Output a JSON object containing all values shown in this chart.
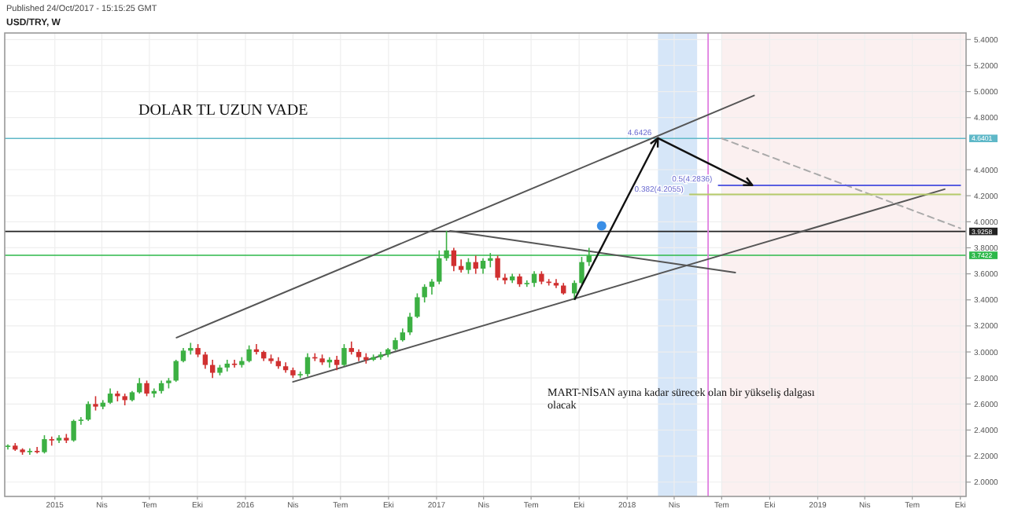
{
  "chart_data": {
    "type": "candlestick",
    "title": "USD/TRY, W",
    "subtitle": "Published 24/Oct/2017 - 15:15:25 GMT",
    "annotations": [
      "DOLAR TL UZUN VADE",
      "MART-NİSAN ayına kadar sürecek olan bir yükseliş dalgası olacak",
      {
        "text": "0.5(4.2836)",
        "x": "2018-06-25",
        "y": 4.2836
      },
      {
        "text": "0.382(4.2055)",
        "x": "2018-05-01",
        "y": 4.2055
      },
      {
        "text": "4.6426",
        "x": "2018-03-01",
        "y": 4.6426
      }
    ],
    "x": [
      "2014-10-03",
      "2014-10-17",
      "2014-10-31",
      "2014-11-14",
      "2014-11-28",
      "2014-12-12",
      "2014-12-26",
      "2015-01-09",
      "2015-01-23",
      "2015-02-06",
      "2015-02-20",
      "2015-03-06",
      "2015-03-20",
      "2015-04-03",
      "2015-04-17",
      "2015-05-01",
      "2015-05-15",
      "2015-05-29",
      "2015-06-12",
      "2015-06-26",
      "2015-07-10",
      "2015-07-24",
      "2015-08-07",
      "2015-08-21",
      "2015-09-04",
      "2015-09-18",
      "2015-10-02",
      "2015-10-16",
      "2015-10-30",
      "2015-11-13",
      "2015-11-27",
      "2015-12-11",
      "2015-12-25",
      "2016-01-08",
      "2016-01-22",
      "2016-02-05",
      "2016-02-19",
      "2016-03-04",
      "2016-03-18",
      "2016-04-01",
      "2016-04-15",
      "2016-04-29",
      "2016-05-13",
      "2016-05-27",
      "2016-06-10",
      "2016-06-24",
      "2016-07-08",
      "2016-07-22",
      "2016-08-05",
      "2016-08-19",
      "2016-09-02",
      "2016-09-16",
      "2016-09-30",
      "2016-10-14",
      "2016-10-28",
      "2016-11-11",
      "2016-11-25",
      "2016-12-09",
      "2016-12-23",
      "2017-01-06",
      "2017-01-20",
      "2017-02-03",
      "2017-02-17",
      "2017-03-03",
      "2017-03-17",
      "2017-03-31",
      "2017-04-14",
      "2017-04-28",
      "2017-05-12",
      "2017-05-26",
      "2017-06-09",
      "2017-06-23",
      "2017-07-07",
      "2017-07-21",
      "2017-08-04",
      "2017-08-18",
      "2017-09-01",
      "2017-09-22",
      "2017-10-06",
      "2017-10-20"
    ],
    "ohlc": [
      [
        2.27,
        2.29,
        2.25,
        2.28
      ],
      [
        2.28,
        2.3,
        2.24,
        2.25
      ],
      [
        2.25,
        2.26,
        2.21,
        2.23
      ],
      [
        2.23,
        2.26,
        2.21,
        2.24
      ],
      [
        2.24,
        2.27,
        2.22,
        2.23
      ],
      [
        2.23,
        2.36,
        2.22,
        2.33
      ],
      [
        2.33,
        2.35,
        2.28,
        2.32
      ],
      [
        2.32,
        2.36,
        2.3,
        2.34
      ],
      [
        2.34,
        2.37,
        2.3,
        2.32
      ],
      [
        2.32,
        2.48,
        2.31,
        2.47
      ],
      [
        2.47,
        2.5,
        2.44,
        2.48
      ],
      [
        2.48,
        2.62,
        2.47,
        2.6
      ],
      [
        2.6,
        2.66,
        2.55,
        2.58
      ],
      [
        2.58,
        2.63,
        2.56,
        2.61
      ],
      [
        2.61,
        2.72,
        2.6,
        2.68
      ],
      [
        2.68,
        2.7,
        2.62,
        2.66
      ],
      [
        2.66,
        2.68,
        2.59,
        2.63
      ],
      [
        2.63,
        2.7,
        2.62,
        2.69
      ],
      [
        2.69,
        2.8,
        2.68,
        2.76
      ],
      [
        2.76,
        2.78,
        2.66,
        2.68
      ],
      [
        2.68,
        2.72,
        2.65,
        2.7
      ],
      [
        2.7,
        2.78,
        2.68,
        2.76
      ],
      [
        2.76,
        2.8,
        2.72,
        2.78
      ],
      [
        2.78,
        2.94,
        2.77,
        2.93
      ],
      [
        2.93,
        3.03,
        2.92,
        3.01
      ],
      [
        3.01,
        3.07,
        2.98,
        3.03
      ],
      [
        3.03,
        3.06,
        2.96,
        2.98
      ],
      [
        2.98,
        3.0,
        2.87,
        2.9
      ],
      [
        2.9,
        2.94,
        2.8,
        2.84
      ],
      [
        2.84,
        2.9,
        2.82,
        2.88
      ],
      [
        2.88,
        2.94,
        2.85,
        2.91
      ],
      [
        2.91,
        2.94,
        2.88,
        2.9
      ],
      [
        2.9,
        2.96,
        2.88,
        2.93
      ],
      [
        2.93,
        3.05,
        2.92,
        3.02
      ],
      [
        3.02,
        3.06,
        2.98,
        3.0
      ],
      [
        3.0,
        3.01,
        2.93,
        2.95
      ],
      [
        2.95,
        2.98,
        2.91,
        2.93
      ],
      [
        2.93,
        2.96,
        2.87,
        2.89
      ],
      [
        2.89,
        2.92,
        2.84,
        2.86
      ],
      [
        2.86,
        2.88,
        2.8,
        2.82
      ],
      [
        2.82,
        2.85,
        2.8,
        2.83
      ],
      [
        2.83,
        2.99,
        2.81,
        2.96
      ],
      [
        2.96,
        2.99,
        2.93,
        2.95
      ],
      [
        2.95,
        2.98,
        2.9,
        2.92
      ],
      [
        2.92,
        2.96,
        2.88,
        2.94
      ],
      [
        2.94,
        2.97,
        2.86,
        2.9
      ],
      [
        2.9,
        3.06,
        2.89,
        3.03
      ],
      [
        3.03,
        3.08,
        2.98,
        3.0
      ],
      [
        3.0,
        3.02,
        2.93,
        2.96
      ],
      [
        2.96,
        2.99,
        2.91,
        2.94
      ],
      [
        2.94,
        2.98,
        2.93,
        2.96
      ],
      [
        2.96,
        3.0,
        2.94,
        2.98
      ],
      [
        2.98,
        3.03,
        2.96,
        3.02
      ],
      [
        3.02,
        3.11,
        3.01,
        3.09
      ],
      [
        3.09,
        3.18,
        3.08,
        3.15
      ],
      [
        3.15,
        3.3,
        3.13,
        3.27
      ],
      [
        3.27,
        3.45,
        3.26,
        3.42
      ],
      [
        3.42,
        3.52,
        3.38,
        3.5
      ],
      [
        3.5,
        3.56,
        3.44,
        3.54
      ],
      [
        3.54,
        3.78,
        3.52,
        3.72
      ],
      [
        3.72,
        3.93,
        3.7,
        3.78
      ],
      [
        3.78,
        3.8,
        3.62,
        3.66
      ],
      [
        3.66,
        3.71,
        3.61,
        3.63
      ],
      [
        3.63,
        3.72,
        3.6,
        3.69
      ],
      [
        3.69,
        3.74,
        3.6,
        3.64
      ],
      [
        3.64,
        3.72,
        3.6,
        3.7
      ],
      [
        3.7,
        3.76,
        3.65,
        3.72
      ],
      [
        3.72,
        3.74,
        3.55,
        3.57
      ],
      [
        3.57,
        3.6,
        3.52,
        3.55
      ],
      [
        3.55,
        3.6,
        3.53,
        3.58
      ],
      [
        3.58,
        3.6,
        3.5,
        3.52
      ],
      [
        3.52,
        3.55,
        3.5,
        3.53
      ],
      [
        3.53,
        3.62,
        3.5,
        3.6
      ],
      [
        3.6,
        3.62,
        3.52,
        3.54
      ],
      [
        3.54,
        3.56,
        3.51,
        3.53
      ],
      [
        3.53,
        3.56,
        3.49,
        3.51
      ],
      [
        3.51,
        3.53,
        3.44,
        3.45
      ],
      [
        3.45,
        3.55,
        3.4,
        3.53
      ],
      [
        3.53,
        3.73,
        3.52,
        3.69
      ],
      [
        3.69,
        3.8,
        3.66,
        3.74
      ]
    ],
    "series": [
      {
        "type": "line",
        "color": "#555555",
        "x": [
          "2015-08-22",
          "2018-09-01"
        ],
        "values": [
          3.11,
          4.97
        ]
      },
      {
        "type": "line",
        "color": "#555555",
        "x": [
          "2016-04-01",
          "2019-09-01"
        ],
        "values": [
          2.77,
          4.25
        ]
      },
      {
        "type": "line",
        "color": "#555555",
        "x": [
          "2017-01-27",
          "2018-07-27"
        ],
        "values": [
          3.93,
          3.61
        ]
      },
      {
        "type": "line",
        "color": "#aaaaaa",
        "line_style": "dashed",
        "x": [
          "2018-07-01",
          "2019-10-01"
        ],
        "values": [
          4.64,
          3.95
        ]
      },
      {
        "type": "line",
        "color": "#5a5ee0",
        "x": [
          "2018-06-25",
          "2019-10-01"
        ],
        "values": [
          4.28,
          4.28
        ]
      },
      {
        "type": "line",
        "color": "#b5c96a",
        "x": [
          "2018-05-01",
          "2019-10-01"
        ],
        "values": [
          4.21,
          4.21
        ]
      }
    ],
    "ref_lines": [
      {
        "axis": "y",
        "value": 3.9258,
        "label": "3.9258",
        "color": "#222222"
      },
      {
        "axis": "y",
        "value": 3.7422,
        "label": "3.7422",
        "color": "#2db84a"
      },
      {
        "axis": "y",
        "value": 4.6401,
        "label": "4.6401",
        "color": "#5fb8c8"
      },
      {
        "axis": "x",
        "value": "2018-06-05",
        "color": "#e080e0"
      }
    ],
    "bands": [
      {
        "axis": "x",
        "from": "2018-03-01",
        "to": "2018-05-15",
        "color": "#d6e6f8"
      },
      {
        "axis": "x",
        "from": "2018-07-01",
        "to": "2019-10-10",
        "color": "#fbf0f0"
      }
    ],
    "xlim": [
      "2014-09-27",
      "2019-10-12"
    ],
    "xticks": [
      {
        "value": "2015-01-01",
        "label": "2015"
      },
      {
        "value": "2015-04-01",
        "label": "Nis"
      },
      {
        "value": "2015-07-01",
        "label": "Tem"
      },
      {
        "value": "2015-10-01",
        "label": "Eki"
      },
      {
        "value": "2016-01-01",
        "label": "2016"
      },
      {
        "value": "2016-04-01",
        "label": "Nis"
      },
      {
        "value": "2016-07-01",
        "label": "Tem"
      },
      {
        "value": "2016-10-01",
        "label": "Eki"
      },
      {
        "value": "2017-01-01",
        "label": "2017"
      },
      {
        "value": "2017-04-01",
        "label": "Nis"
      },
      {
        "value": "2017-07-01",
        "label": "Tem"
      },
      {
        "value": "2017-10-01",
        "label": "Eki"
      },
      {
        "value": "2018-01-01",
        "label": "2018"
      },
      {
        "value": "2018-04-01",
        "label": "Nis"
      },
      {
        "value": "2018-07-01",
        "label": "Tem"
      },
      {
        "value": "2018-10-01",
        "label": "Eki"
      },
      {
        "value": "2019-01-01",
        "label": "2019"
      },
      {
        "value": "2019-04-01",
        "label": "Nis"
      },
      {
        "value": "2019-07-01",
        "label": "Tem"
      },
      {
        "value": "2019-10-01",
        "label": "Eki"
      }
    ],
    "ylim": [
      1.89,
      5.45
    ],
    "yticks": [
      {
        "value": 2.0,
        "label": "2.0000"
      },
      {
        "value": 2.2,
        "label": "2.2000"
      },
      {
        "value": 2.4,
        "label": "2.4000"
      },
      {
        "value": 2.6,
        "label": "2.6000"
      },
      {
        "value": 2.8,
        "label": "2.8000"
      },
      {
        "value": 3.0,
        "label": "3.0000"
      },
      {
        "value": 3.2,
        "label": "3.2000"
      },
      {
        "value": 3.4,
        "label": "3.4000"
      },
      {
        "value": 3.6,
        "label": "3.6000"
      },
      {
        "value": 3.8,
        "label": "3.8000"
      },
      {
        "value": 4.0,
        "label": "4.0000"
      },
      {
        "value": 4.2,
        "label": "4.2000"
      },
      {
        "value": 4.4,
        "label": "4.4000"
      },
      {
        "value": 4.8,
        "label": "4.8000"
      },
      {
        "value": 5.0,
        "label": "5.0000"
      },
      {
        "value": 5.2,
        "label": "5.2000"
      },
      {
        "value": 5.4,
        "label": "5.4000"
      }
    ],
    "grid": true
  }
}
